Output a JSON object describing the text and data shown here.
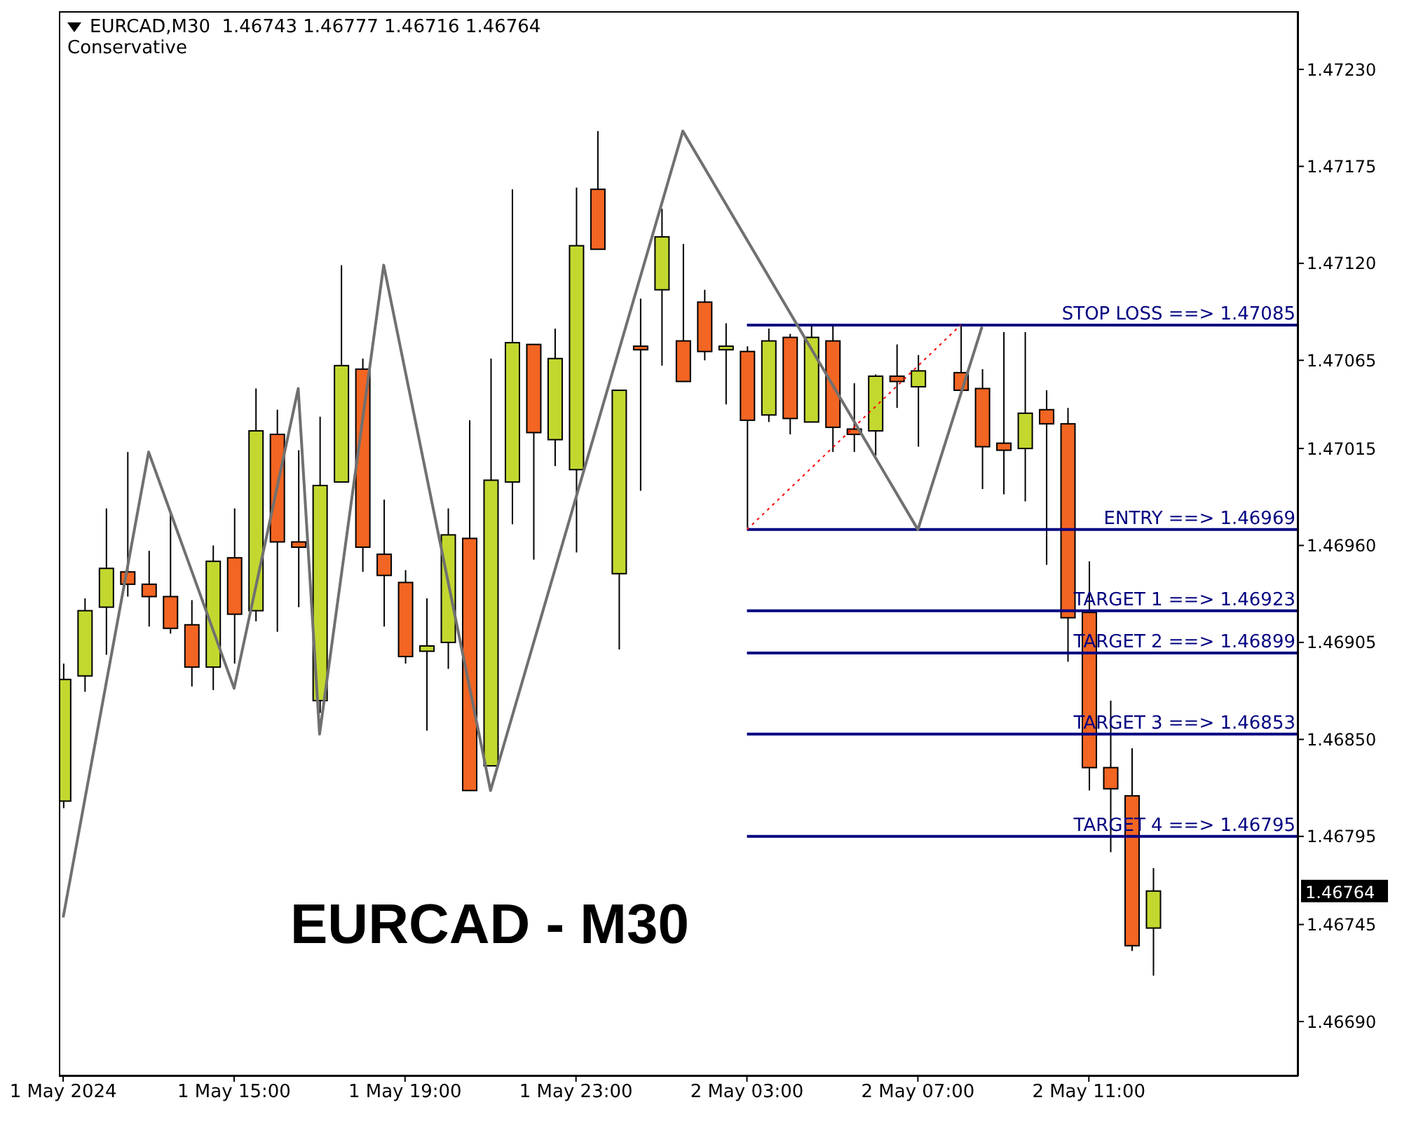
{
  "chart_data": {
    "type": "candlestick",
    "title": "EURCAD,M30  1.46743 1.46777 1.46716 1.46764",
    "subtitle": "Conservative",
    "annotations": [
      "EURCAD - M30",
      "1.46764"
    ],
    "x": [
      "2024-05-01T11:00",
      "2024-05-01T11:30",
      "2024-05-01T12:00",
      "2024-05-01T12:30",
      "2024-05-01T13:00",
      "2024-05-01T13:30",
      "2024-05-01T14:00",
      "2024-05-01T14:30",
      "2024-05-01T15:00",
      "2024-05-01T15:30",
      "2024-05-01T16:00",
      "2024-05-01T16:30",
      "2024-05-01T17:00",
      "2024-05-01T17:30",
      "2024-05-01T18:00",
      "2024-05-01T18:30",
      "2024-05-01T19:00",
      "2024-05-01T19:30",
      "2024-05-01T20:00",
      "2024-05-01T20:30",
      "2024-05-01T21:00",
      "2024-05-01T21:30",
      "2024-05-01T22:00",
      "2024-05-01T22:30",
      "2024-05-01T23:00",
      "2024-05-01T23:30",
      "2024-05-02T00:00",
      "2024-05-02T00:30",
      "2024-05-02T01:00",
      "2024-05-02T01:30",
      "2024-05-02T02:00",
      "2024-05-02T02:30",
      "2024-05-02T03:00",
      "2024-05-02T03:30",
      "2024-05-02T04:00",
      "2024-05-02T04:30",
      "2024-05-02T05:00",
      "2024-05-02T05:30",
      "2024-05-02T06:00",
      "2024-05-02T06:30",
      "2024-05-02T07:00",
      "2024-05-02T08:00",
      "2024-05-02T08:30",
      "2024-05-02T09:00",
      "2024-05-02T09:30",
      "2024-05-02T10:00",
      "2024-05-02T10:30",
      "2024-05-02T11:00",
      "2024-05-02T11:30",
      "2024-05-02T12:00",
      "2024-05-02T12:30"
    ],
    "ohlc": [
      [
        1.46815,
        1.46893,
        1.46811,
        1.46884
      ],
      [
        1.46886,
        1.4693,
        1.46877,
        1.46923
      ],
      [
        1.46925,
        1.46981,
        1.46898,
        1.46947
      ],
      [
        1.46945,
        1.47013,
        1.46931,
        1.46938
      ],
      [
        1.46938,
        1.46957,
        1.46914,
        1.46931
      ],
      [
        1.46931,
        1.46978,
        1.4691,
        1.46913
      ],
      [
        1.46915,
        1.46929,
        1.4688,
        1.46891
      ],
      [
        1.46891,
        1.4696,
        1.46878,
        1.46951
      ],
      [
        1.46953,
        1.46981,
        1.46893,
        1.46921
      ],
      [
        1.46923,
        1.47049,
        1.46917,
        1.47025
      ],
      [
        1.47023,
        1.47037,
        1.46911,
        1.46962
      ],
      [
        1.46962,
        1.47014,
        1.46925,
        1.46959
      ],
      [
        1.46872,
        1.47033,
        1.46865,
        1.46994
      ],
      [
        1.46996,
        1.47119,
        1.46996,
        1.47062
      ],
      [
        1.4706,
        1.47066,
        1.46945,
        1.46959
      ],
      [
        1.46955,
        1.46986,
        1.46914,
        1.46943
      ],
      [
        1.46939,
        1.46946,
        1.46893,
        1.46897
      ],
      [
        1.469,
        1.4693,
        1.46855,
        1.46903
      ],
      [
        1.46905,
        1.46981,
        1.4689,
        1.46966
      ],
      [
        1.46964,
        1.47031,
        1.46821,
        1.46821
      ],
      [
        1.46835,
        1.47066,
        1.46835,
        1.46997
      ],
      [
        1.46996,
        1.47162,
        1.46972,
        1.47075
      ],
      [
        1.47074,
        1.47074,
        1.46952,
        1.47024
      ],
      [
        1.4702,
        1.47083,
        1.47005,
        1.47066
      ],
      [
        1.47003,
        1.47163,
        1.46956,
        1.4713
      ],
      [
        1.47162,
        1.47195,
        1.47128,
        1.47128
      ],
      [
        1.46944,
        1.47048,
        1.46901,
        1.47048
      ],
      [
        1.47073,
        1.471,
        1.46991,
        1.47071
      ],
      [
        1.47105,
        1.47151,
        1.47062,
        1.47135
      ],
      [
        1.47076,
        1.47131,
        1.47053,
        1.47053
      ],
      [
        1.47098,
        1.47105,
        1.47065,
        1.4707
      ],
      [
        1.47071,
        1.47086,
        1.4704,
        1.47073
      ],
      [
        1.4707,
        1.47073,
        1.4697,
        1.47031
      ],
      [
        1.47034,
        1.47083,
        1.4703,
        1.47076
      ],
      [
        1.47078,
        1.4708,
        1.47023,
        1.47032
      ],
      [
        1.4703,
        1.47085,
        1.4703,
        1.47078
      ],
      [
        1.47076,
        1.47085,
        1.47013,
        1.47027
      ],
      [
        1.47026,
        1.47052,
        1.47013,
        1.47023
      ],
      [
        1.47025,
        1.47057,
        1.47011,
        1.47056
      ],
      [
        1.47056,
        1.47074,
        1.47038,
        1.47053
      ],
      [
        1.4705,
        1.47068,
        1.47016,
        1.47059
      ],
      [
        1.47058,
        1.47085,
        1.47048,
        1.47048
      ],
      [
        1.47049,
        1.4706,
        1.46992,
        1.47016
      ],
      [
        1.47018,
        1.47081,
        1.46989,
        1.47014
      ],
      [
        1.47015,
        1.47081,
        1.46985,
        1.47035
      ],
      [
        1.47037,
        1.47048,
        1.46949,
        1.47029
      ],
      [
        1.47029,
        1.47038,
        1.46894,
        1.46919
      ],
      [
        1.46922,
        1.46951,
        1.46821,
        1.46834
      ],
      [
        1.46834,
        1.46872,
        1.46786,
        1.46822
      ],
      [
        1.46818,
        1.46845,
        1.4673,
        1.46733
      ],
      [
        1.46743,
        1.46777,
        1.46716,
        1.46764
      ]
    ],
    "colors": [
      "#c3d82f",
      "#c3d82f",
      "#c3d82f",
      "#f26522",
      "#f26522",
      "#f26522",
      "#f26522",
      "#c3d82f",
      "#f26522",
      "#c3d82f",
      "#f26522",
      "#f26522",
      "#c3d82f",
      "#c3d82f",
      "#f26522",
      "#f26522",
      "#f26522",
      "#c3d82f",
      "#c3d82f",
      "#f26522",
      "#c3d82f",
      "#c3d82f",
      "#f26522",
      "#c3d82f",
      "#c3d82f",
      "#f26522",
      "#c3d82f",
      "#f26522",
      "#c3d82f",
      "#f26522",
      "#f26522",
      "#c3d82f",
      "#f26522",
      "#c3d82f",
      "#f26522",
      "#c3d82f",
      "#f26522",
      "#f26522",
      "#c3d82f",
      "#f26522",
      "#c3d82f",
      "#f26522",
      "#f26522",
      "#f26522",
      "#c3d82f",
      "#f26522",
      "#f26522",
      "#f26522",
      "#f26522",
      "#f26522",
      "#c3d82f"
    ],
    "series": [
      {
        "type": "line",
        "color": "#707070",
        "x": [
          "2024-05-01T11:00",
          "2024-05-01T13:00",
          "2024-05-01T15:00",
          "2024-05-01T16:30",
          "2024-05-01T17:00",
          "2024-05-01T18:30",
          "2024-05-01T21:00",
          "2024-05-02T01:30",
          "2024-05-02T07:00",
          "2024-05-02T08:30"
        ],
        "values": [
          1.46749,
          1.47013,
          1.46879,
          1.47049,
          1.46853,
          1.47119,
          1.46821,
          1.47195,
          1.46969,
          1.47084
        ]
      },
      {
        "type": "line",
        "color": "#ff0000",
        "line_style": "dotted",
        "x": [
          "2024-05-02T03:00",
          "2024-05-02T08:00"
        ],
        "values": [
          1.46969,
          1.47085
        ]
      }
    ],
    "ref_lines": [
      {
        "axis": "y",
        "value": 1.47085,
        "label": "STOP LOSS ==> 1.47085",
        "color": "#000080"
      },
      {
        "axis": "y",
        "value": 1.46969,
        "label": "ENTRY ==> 1.46969",
        "color": "#000080"
      },
      {
        "axis": "y",
        "value": 1.46923,
        "label": "TARGET 1 ==> 1.46923",
        "color": "#000080"
      },
      {
        "axis": "y",
        "value": 1.46899,
        "label": "TARGET 2 ==> 1.46899",
        "color": "#000080"
      },
      {
        "axis": "y",
        "value": 1.46853,
        "label": "TARGET 3 ==> 1.46853",
        "color": "#000080"
      },
      {
        "axis": "y",
        "value": 1.46795,
        "label": "TARGET 4 ==> 1.46795",
        "color": "#000080"
      }
    ],
    "xlim": [
      "2024-05-01T10:54",
      "2024-05-02T15:54"
    ],
    "xticks": [
      {
        "value": "2024-05-01T11:00",
        "label": "1 May 2024"
      },
      {
        "value": "2024-05-01T15:00",
        "label": "1 May 15:00"
      },
      {
        "value": "2024-05-01T19:00",
        "label": "1 May 19:00"
      },
      {
        "value": "2024-05-01T23:00",
        "label": "1 May 23:00"
      },
      {
        "value": "2024-05-02T03:00",
        "label": "2 May 03:00"
      },
      {
        "value": "2024-05-02T07:00",
        "label": "2 May 07:00"
      },
      {
        "value": "2024-05-02T11:00",
        "label": "2 May 11:00"
      }
    ],
    "ylim": [
      1.46659,
      1.47263
    ],
    "yticks": [
      {
        "value": 1.4723,
        "label": "1.47230"
      },
      1.47175,
      {
        "value": 1.4712,
        "label": "1.47120"
      },
      1.47065,
      1.47015,
      {
        "value": 1.4696,
        "label": "1.46960"
      },
      1.46905,
      {
        "value": 1.4685,
        "label": "1.46850"
      },
      1.46795,
      1.46745,
      {
        "value": 1.4669,
        "label": "1.46690"
      }
    ],
    "grid": false,
    "marker": "none"
  }
}
